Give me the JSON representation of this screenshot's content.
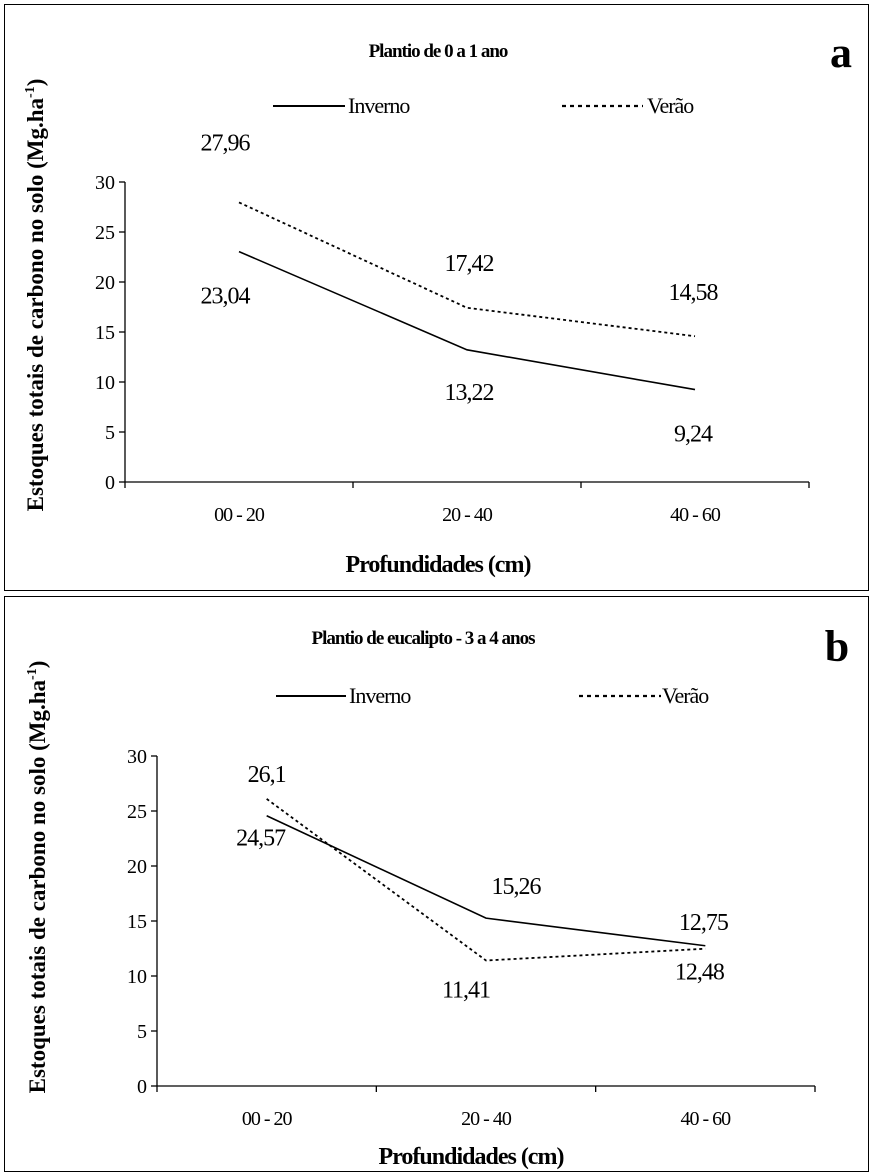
{
  "chart_data": [
    {
      "id": "a",
      "type": "line",
      "panel_letter": "a",
      "title": "Plantio de 0 a 1 ano",
      "xlabel": "Profundidades (cm)",
      "ylabel": "Estoques totais de carbono no solo (Mg.ha",
      "ylabel_sup": "-1",
      "ylabel_close": ")",
      "categories": [
        "00 - 20",
        "20 - 40",
        "40 - 60"
      ],
      "ylim": [
        0,
        30
      ],
      "yticks": [
        "0",
        "5",
        "10",
        "15",
        "20",
        "25",
        "30"
      ],
      "grid": false,
      "legend_position": "top",
      "series": [
        {
          "name": "Inverno",
          "line_style": "solid",
          "values": [
            23.04,
            13.22,
            9.24
          ],
          "labels": [
            "23,04",
            "13,22",
            "9,24"
          ]
        },
        {
          "name": "Verão",
          "line_style": "dotted",
          "values": [
            27.96,
            17.42,
            14.58
          ],
          "labels": [
            "27,96",
            "17,42",
            "14,58"
          ]
        }
      ]
    },
    {
      "id": "b",
      "type": "line",
      "panel_letter": "b",
      "title": "Plantio de eucalipto - 3 a 4 anos",
      "xlabel": "Profundidades (cm)",
      "ylabel": "Estoques totais de carbono no solo (Mg.ha",
      "ylabel_sup": "-1",
      "ylabel_close": ")",
      "categories": [
        "00 - 20",
        "20 - 40",
        "40 - 60"
      ],
      "ylim": [
        0,
        30
      ],
      "yticks": [
        "0",
        "5",
        "10",
        "15",
        "20",
        "25",
        "30"
      ],
      "grid": false,
      "legend_position": "top",
      "series": [
        {
          "name": "Inverno",
          "line_style": "solid",
          "values": [
            24.57,
            15.26,
            12.75
          ],
          "labels": [
            "24,57",
            "15,26",
            "12,75"
          ]
        },
        {
          "name": "Verão",
          "line_style": "dotted",
          "values": [
            26.1,
            11.41,
            12.48
          ],
          "labels": [
            "26,1",
            "11,41",
            "12,48"
          ]
        }
      ]
    }
  ]
}
